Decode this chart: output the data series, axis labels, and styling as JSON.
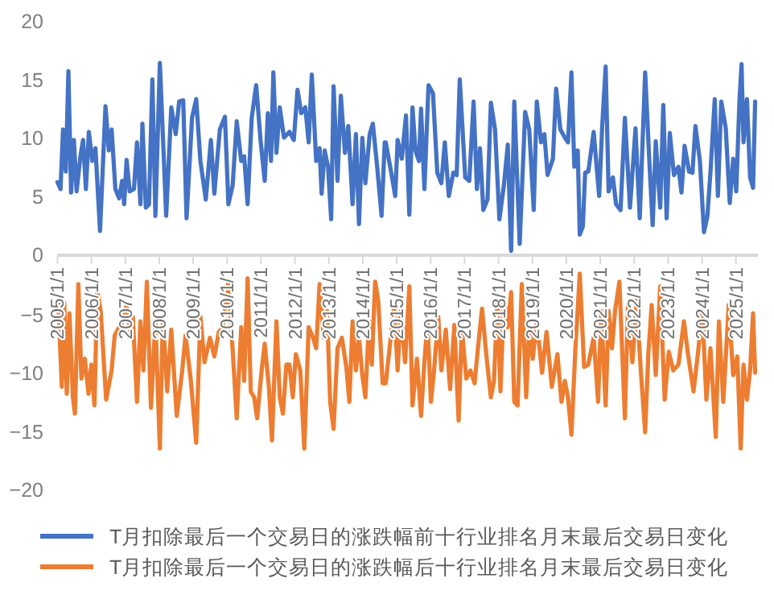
{
  "chart_data": [
    {
      "type": "line",
      "xlim": [
        "2005-01-01",
        "2025-08-25"
      ],
      "ylim": [
        0,
        20
      ],
      "yticks": [
        0,
        5,
        10,
        15,
        20
      ],
      "tick_labels": "y",
      "legend": "bottom",
      "marker": "none",
      "line_style": "solid",
      "series": [
        {
          "name": "T月扣除最后一个交易日的涨跌幅前十行业排名月末最后交易日变化",
          "color": "#4472c4",
          "x": [
            "2005-01-01",
            "2005-02-03",
            "2005-03-02",
            "2005-04-01",
            "2005-04-29",
            "2005-05-28",
            "2005-06-27",
            "2005-07-26",
            "2005-09-05",
            "2005-10-04",
            "2005-11-03",
            "2005-12-05",
            "2006-01-11",
            "2006-02-14",
            "2006-04-04",
            "2006-06-02",
            "2006-07-08",
            "2006-08-07",
            "2006-09-16",
            "2006-10-26",
            "2006-11-28",
            "2006-12-20",
            "2007-01-15",
            "2007-02-17",
            "2007-04-04",
            "2007-05-07",
            "2007-06-13",
            "2007-07-04",
            "2007-08-10",
            "2007-09-13",
            "2007-10-19",
            "2007-11-21",
            "2008-01-08",
            "2008-03-16",
            "2008-05-10",
            "2008-06-27",
            "2008-08-03",
            "2008-09-16",
            "2008-10-22",
            "2008-12-20",
            "2009-02-03",
            "2009-03-20",
            "2009-05-17",
            "2009-07-11",
            "2009-08-17",
            "2009-10-15",
            "2009-12-09",
            "2010-01-15",
            "2010-03-02",
            "2010-04-15",
            "2010-06-02",
            "2010-07-04",
            "2010-08-10",
            "2010-09-23",
            "2010-11-10",
            "2010-12-27",
            "2011-02-10",
            "2011-03-16",
            "2011-04-19",
            "2011-05-14",
            "2011-06-16",
            "2011-07-22",
            "2011-09-05",
            "2011-11-03",
            "2011-12-20",
            "2012-01-29",
            "2012-03-09",
            "2012-04-22",
            "2012-05-28",
            "2012-07-01",
            "2012-08-17",
            "2012-09-23",
            "2012-10-15",
            "2012-11-17",
            "2012-12-23",
            "2013-01-26",
            "2013-02-21",
            "2013-04-04",
            "2013-05-10",
            "2013-06-23",
            "2013-07-29",
            "2013-09-13",
            "2013-10-19",
            "2013-11-21",
            "2013-12-27",
            "2014-01-29",
            "2014-03-16",
            "2014-04-19",
            "2014-06-05",
            "2014-07-22",
            "2014-08-25",
            "2014-09-05",
            "2014-11-03",
            "2014-12-16",
            "2015-01-11",
            "2015-02-25",
            "2015-04-11",
            "2015-05-17",
            "2015-06-20",
            "2015-07-22",
            "2015-08-28",
            "2015-09-20",
            "2015-10-26",
            "2015-12-09",
            "2016-01-26",
            "2016-03-13",
            "2016-04-26",
            "2016-06-02",
            "2016-07-15",
            "2016-09-02",
            "2016-10-08",
            "2016-11-10",
            "2017-01-08",
            "2017-02-21",
            "2017-04-08",
            "2017-05-14",
            "2017-06-16",
            "2017-07-22",
            "2017-09-05",
            "2017-10-11",
            "2017-11-25",
            "2018-01-11",
            "2018-02-28",
            "2018-04-11",
            "2018-05-17",
            "2018-06-20",
            "2018-08-17",
            "2018-10-15",
            "2018-11-28",
            "2019-01-15",
            "2019-02-17",
            "2019-04-04",
            "2019-05-10",
            "2019-06-13",
            "2019-08-10",
            "2019-09-13",
            "2019-10-29",
            "2019-12-16",
            "2020-01-19",
            "2020-02-25",
            "2020-03-27",
            "2020-05-03",
            "2020-05-25",
            "2020-06-27",
            "2020-07-22",
            "2020-08-25",
            "2020-10-22",
            "2020-12-20",
            "2021-01-22",
            "2021-02-28",
            "2021-04-01",
            "2021-05-17",
            "2021-06-20",
            "2021-08-07",
            "2021-09-23",
            "2021-11-17",
            "2022-01-15",
            "2022-03-02",
            "2022-04-29",
            "2022-06-13",
            "2022-07-19",
            "2022-08-21",
            "2022-10-08",
            "2022-11-10",
            "2022-12-16",
            "2023-01-19",
            "2023-03-05",
            "2023-04-22",
            "2023-05-25",
            "2023-06-27",
            "2023-08-14",
            "2023-09-20",
            "2023-10-22",
            "2023-12-09",
            "2024-01-22",
            "2024-02-28",
            "2024-04-01",
            "2024-05-17",
            "2024-06-20",
            "2024-07-26",
            "2024-09-13",
            "2024-10-26",
            "2024-12-02",
            "2025-01-04",
            "2025-02-07",
            "2025-03-02",
            "2025-03-23",
            "2025-04-29",
            "2025-06-02",
            "2025-07-04",
            "2025-07-26"
          ],
          "values": [
            6.2,
            5.6,
            10.7,
            7.1,
            15.7,
            5.3,
            9.8,
            5.4,
            8.4,
            9.8,
            5.6,
            10.5,
            8.0,
            9.1,
            2.0,
            12.7,
            8.9,
            10.7,
            5.6,
            4.8,
            6.3,
            4.3,
            8.1,
            5.4,
            5.6,
            9.6,
            4.3,
            11.2,
            4.0,
            4.3,
            15.0,
            3.3,
            16.4,
            3.3,
            12.6,
            10.3,
            13.1,
            13.2,
            3.1,
            11.7,
            13.3,
            8.0,
            4.7,
            9.8,
            5.2,
            10.7,
            11.8,
            4.3,
            5.9,
            11.4,
            8.0,
            8.4,
            4.3,
            11.7,
            14.5,
            9.8,
            6.3,
            12.1,
            8.0,
            15.6,
            8.7,
            12.6,
            10.0,
            10.5,
            9.8,
            14.1,
            12.1,
            12.6,
            9.6,
            15.4,
            8.0,
            9.1,
            5.2,
            8.9,
            7.5,
            3.0,
            14.4,
            6.3,
            13.6,
            8.7,
            11.0,
            4.3,
            10.3,
            2.6,
            10.0,
            6.1,
            10.3,
            11.2,
            7.5,
            3.3,
            9.6,
            9.6,
            7.0,
            5.0,
            9.8,
            8.2,
            11.9,
            3.4,
            12.6,
            8.9,
            8.0,
            12.5,
            5.6,
            14.5,
            13.8,
            7.0,
            6.1,
            9.6,
            5.0,
            7.0,
            6.8,
            15.0,
            6.6,
            6.3,
            13.1,
            5.6,
            9.1,
            3.8,
            4.7,
            13.0,
            10.7,
            3.0,
            5.9,
            9.4,
            0.3,
            13.1,
            0.9,
            12.2,
            10.7,
            3.8,
            13.1,
            9.6,
            10.3,
            6.8,
            8.2,
            14.2,
            10.7,
            10.0,
            9.6,
            15.6,
            7.5,
            8.9,
            1.7,
            2.4,
            7.0,
            7.1,
            10.5,
            5.0,
            11.0,
            16.1,
            5.4,
            6.6,
            4.3,
            3.8,
            11.7,
            4.0,
            10.8,
            3.1,
            15.6,
            8.0,
            2.5,
            9.7,
            4.0,
            12.8,
            3.1,
            10.4,
            6.8,
            7.5,
            5.3,
            9.3,
            7.1,
            7.0,
            11.0,
            8.0,
            1.9,
            3.3,
            7.1,
            13.3,
            5.0,
            13.1,
            10.8,
            4.4,
            8.2,
            5.4,
            13.1,
            16.3,
            9.6,
            13.3,
            6.6,
            5.7,
            13.1
          ]
        }
      ]
    },
    {
      "type": "line",
      "xlim": [
        "2005-01-01",
        "2025-08-25"
      ],
      "ylim": [
        -20,
        0
      ],
      "yticks": [
        -20,
        -15,
        -10,
        -5
      ],
      "legend": "bottom",
      "marker": "none",
      "line_style": "solid",
      "xticks": [
        {
          "value": "2005-01-01",
          "label": "2005/1/1"
        },
        {
          "value": "2006-01-01",
          "label": "2006/1/1"
        },
        {
          "value": "2007-01-01",
          "label": "2007/1/1"
        },
        {
          "value": "2008-01-01",
          "label": "2008/1/1"
        },
        {
          "value": "2009-01-01",
          "label": "2009/1/1"
        },
        {
          "value": "2010-01-01",
          "label": "2010/1/1"
        },
        {
          "value": "2011-01-01",
          "label": "2011/1/1"
        },
        {
          "value": "2012-01-01",
          "label": "2012/1/1"
        },
        {
          "value": "2013-01-01",
          "label": "2013/1/1"
        },
        {
          "value": "2014-01-01",
          "label": "2014/1/1"
        },
        {
          "value": "2015-01-01",
          "label": "2015/1/1"
        },
        {
          "value": "2016-01-01",
          "label": "2016/1/1"
        },
        {
          "value": "2017-01-01",
          "label": "2017/1/1"
        },
        {
          "value": "2018-01-01",
          "label": "2018/1/1"
        },
        {
          "value": "2019-01-01",
          "label": "2019/1/1"
        },
        {
          "value": "2020-01-01",
          "label": "2020/1/1"
        },
        {
          "value": "2021-01-01",
          "label": "2021/1/1"
        },
        {
          "value": "2022-01-01",
          "label": "2022/1/1"
        },
        {
          "value": "2023-01-01",
          "label": "2023/1/1"
        },
        {
          "value": "2024-01-01",
          "label": "2024/1/1"
        },
        {
          "value": "2025-01-01",
          "label": "2025/1/1"
        }
      ],
      "series": [
        {
          "name": "T月扣除最后一个交易日的涨跌幅后十行业排名月末最后交易日变化",
          "color": "#ed7d31",
          "x": [
            "2005-01-08",
            "2005-02-17",
            "2005-03-16",
            "2005-04-11",
            "2005-05-10",
            "2005-06-16",
            "2005-07-08",
            "2005-08-14",
            "2005-09-16",
            "2005-10-22",
            "2005-12-02",
            "2006-01-01",
            "2006-02-03",
            "2006-03-05",
            "2006-04-11",
            "2006-06-09",
            "2006-08-07",
            "2006-09-09",
            "2006-10-26",
            "2006-12-09",
            "2007-01-15",
            "2007-02-17",
            "2007-03-23",
            "2007-05-07",
            "2007-06-13",
            "2007-07-15",
            "2007-08-21",
            "2007-10-04",
            "2007-11-21",
            "2008-01-08",
            "2008-02-10",
            "2008-03-27",
            "2008-05-10",
            "2008-07-08",
            "2008-09-05",
            "2008-10-11",
            "2008-12-05",
            "2009-02-03",
            "2009-03-20",
            "2009-05-03",
            "2009-07-01",
            "2009-08-17",
            "2009-10-04",
            "2009-11-17",
            "2010-01-15",
            "2010-02-17",
            "2010-04-15",
            "2010-06-02",
            "2010-07-04",
            "2010-08-10",
            "2010-09-13",
            "2010-10-19",
            "2010-11-21",
            "2011-01-08",
            "2011-02-10",
            "2011-03-27",
            "2011-04-29",
            "2011-06-16",
            "2011-07-22",
            "2011-08-25",
            "2011-10-01",
            "2011-11-03",
            "2011-12-09",
            "2012-01-11",
            "2012-02-28",
            "2012-04-11",
            "2012-05-28",
            "2012-07-15",
            "2012-08-17",
            "2012-09-23",
            "2012-11-07",
            "2012-12-13",
            "2013-01-15",
            "2013-02-21",
            "2013-04-04",
            "2013-05-21",
            "2013-07-08",
            "2013-08-10",
            "2013-09-13",
            "2013-10-19",
            "2013-11-21",
            "2013-12-27",
            "2014-01-29",
            "2014-03-09",
            "2014-04-08",
            "2014-05-14",
            "2014-06-16",
            "2014-08-03",
            "2014-09-05",
            "2014-10-22",
            "2014-12-05",
            "2015-01-11",
            "2015-02-14",
            "2015-04-01",
            "2015-05-17",
            "2015-06-20",
            "2015-08-07",
            "2015-09-20",
            "2015-10-26",
            "2015-11-28",
            "2016-01-04",
            "2016-02-07",
            "2016-03-23",
            "2016-04-26",
            "2016-06-13",
            "2016-07-29",
            "2016-09-13",
            "2016-10-29",
            "2016-12-02",
            "2017-01-19",
            "2017-03-05",
            "2017-04-19",
            "2017-05-25",
            "2017-07-08",
            "2017-08-25",
            "2017-10-11",
            "2017-11-14",
            "2017-12-20",
            "2018-01-22",
            "2018-02-28",
            "2018-04-11",
            "2018-05-17",
            "2018-06-20",
            "2018-07-26",
            "2018-09-09",
            "2018-10-26",
            "2018-11-28",
            "2019-01-04",
            "2019-02-17",
            "2019-04-15",
            "2019-06-02",
            "2019-07-29",
            "2019-09-27",
            "2019-11-10",
            "2019-12-16",
            "2020-01-19",
            "2020-02-25",
            "2020-04-08",
            "2020-05-25",
            "2020-07-11",
            "2020-08-25",
            "2020-10-22",
            "2020-12-09",
            "2021-01-11",
            "2021-02-28",
            "2021-04-01",
            "2021-05-07",
            "2021-06-09",
            "2021-07-26",
            "2021-09-23",
            "2021-10-26",
            "2021-12-13",
            "2022-01-26",
            "2022-03-13",
            "2022-04-29",
            "2022-06-02",
            "2022-07-08",
            "2022-08-21",
            "2022-10-08",
            "2022-11-25",
            "2023-01-08",
            "2023-02-25",
            "2023-04-22",
            "2023-06-20",
            "2023-08-03",
            "2023-10-01",
            "2023-11-17",
            "2024-01-04",
            "2024-02-17",
            "2024-04-01",
            "2024-05-28",
            "2024-07-01",
            "2024-08-17",
            "2024-10-15",
            "2024-12-02",
            "2025-01-15",
            "2025-02-21",
            "2025-03-23",
            "2025-04-29",
            "2025-06-02",
            "2025-07-04",
            "2025-07-26"
          ],
          "values": [
            -3.5,
            -11.2,
            -4.0,
            -11.8,
            -4.9,
            -12.1,
            -13.5,
            -2.4,
            -10.5,
            -8.8,
            -11.8,
            -9.3,
            -12.8,
            -2.9,
            -4.7,
            -12.3,
            -9.8,
            -6.8,
            -6.1,
            -5.6,
            -4.2,
            -6.3,
            -5.2,
            -12.5,
            -5.6,
            -9.8,
            -2.2,
            -13.0,
            -5.6,
            -16.5,
            -5.2,
            -11.6,
            -6.3,
            -13.7,
            -9.8,
            -6.8,
            -10.5,
            -16.0,
            -5.2,
            -9.1,
            -7.0,
            -8.6,
            -6.5,
            -6.1,
            -2.2,
            -6.3,
            -13.9,
            -6.1,
            -10.7,
            -1.9,
            -11.6,
            -12.1,
            -13.9,
            -9.8,
            -7.5,
            -11.2,
            -15.8,
            -5.6,
            -12.1,
            -13.5,
            -9.3,
            -9.3,
            -12.1,
            -8.4,
            -9.8,
            -16.5,
            -6.1,
            -7.0,
            -7.9,
            -2.4,
            -7.0,
            -4.7,
            -12.5,
            -14.8,
            -7.9,
            -7.0,
            -9.5,
            -12.5,
            -5.6,
            -9.8,
            -7.0,
            -10.2,
            -12.1,
            -5.6,
            -9.3,
            -2.2,
            -3.8,
            -10.9,
            -10.9,
            -7.5,
            -4.2,
            -9.8,
            -4.7,
            -9.1,
            -2.6,
            -12.8,
            -8.8,
            -13.7,
            -9.1,
            -5.6,
            -12.5,
            -9.8,
            -5.2,
            -9.8,
            -6.3,
            -11.4,
            -5.9,
            -14.1,
            -6.1,
            -10.5,
            -9.8,
            -10.9,
            -7.9,
            -4.5,
            -8.6,
            -12.1,
            -10.7,
            -3.8,
            -11.6,
            -3.8,
            -6.1,
            -3.1,
            -12.5,
            -12.8,
            -2.4,
            -12.1,
            -6.1,
            -8.8,
            -5.6,
            -10.0,
            -6.5,
            -11.2,
            -8.4,
            -12.5,
            -10.7,
            -12.1,
            -15.3,
            -7.9,
            -1.5,
            -9.5,
            -9.3,
            -7.0,
            -12.5,
            -4.7,
            -12.8,
            -4.7,
            -7.9,
            -4.7,
            -2.2,
            -13.9,
            -4.2,
            -9.1,
            -3.8,
            -9.8,
            -15.1,
            -8.4,
            -4.2,
            -10.2,
            -2.6,
            -12.3,
            -8.2,
            -9.8,
            -9.3,
            -5.6,
            -8.4,
            -11.6,
            -8.4,
            -4.7,
            -12.3,
            -7.9,
            -15.5,
            -5.6,
            -12.5,
            -4.2,
            -10.2,
            -8.6,
            -16.5,
            -9.3,
            -12.3,
            -9.8,
            -4.9,
            -10.0
          ]
        }
      ]
    }
  ]
}
